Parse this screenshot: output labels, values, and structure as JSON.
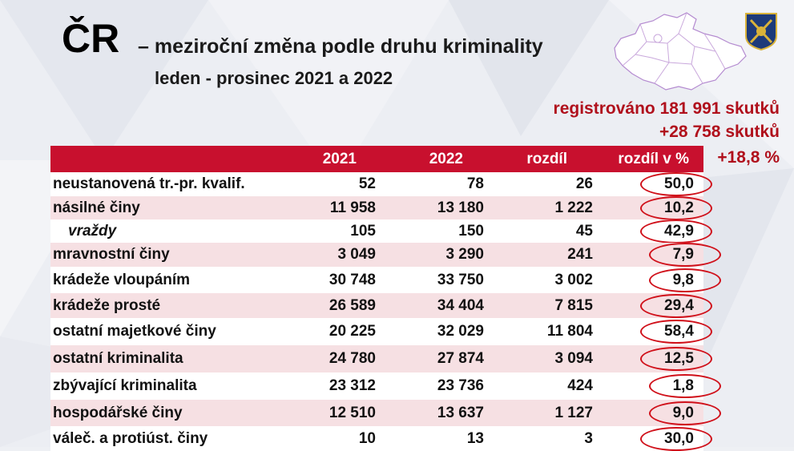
{
  "title": {
    "main": "ČR",
    "rest": "– meziroční změna podle druhu kriminality",
    "period": "leden - prosinec 2021 a 2022"
  },
  "summary": {
    "registered": "registrováno 181 991 skutků",
    "change_abs": "+28 758 skutků",
    "change_pct": "+18,8 %"
  },
  "table": {
    "headers": [
      "",
      "2021",
      "2022",
      "rozdíl",
      "rozdíl v %"
    ],
    "rows": [
      {
        "name": "neustanovená tr.-pr. kvalif.",
        "y2021": "52",
        "y2022": "78",
        "diff": "26",
        "pct": "50,0",
        "italic": false
      },
      {
        "name": "násilné činy",
        "y2021": "11 958",
        "y2022": "13 180",
        "diff": "1 222",
        "pct": "10,2",
        "italic": false
      },
      {
        "name": "vraždy",
        "y2021": "105",
        "y2022": "150",
        "diff": "45",
        "pct": "42,9",
        "italic": true
      },
      {
        "name": "mravnostní činy",
        "y2021": "3 049",
        "y2022": "3 290",
        "diff": "241",
        "pct": "7,9",
        "italic": false
      },
      {
        "name": "krádeže vloupáním",
        "y2021": "30 748",
        "y2022": "33 750",
        "diff": "3 002",
        "pct": "9,8",
        "italic": false
      },
      {
        "name": "krádeže prosté",
        "y2021": "26 589",
        "y2022": "34 404",
        "diff": "7 815",
        "pct": "29,4",
        "italic": false
      },
      {
        "name": "ostatní majetkové činy",
        "y2021": "20 225",
        "y2022": "32 029",
        "diff": "11 804",
        "pct": "58,4",
        "italic": false
      },
      {
        "name": "ostatní kriminalita",
        "y2021": "24 780",
        "y2022": "27 874",
        "diff": "3 094",
        "pct": "12,5",
        "italic": false
      },
      {
        "name": "zbývající kriminalita",
        "y2021": "23 312",
        "y2022": "23 736",
        "diff": "424",
        "pct": "1,8",
        "italic": false
      },
      {
        "name": "hospodářské činy",
        "y2021": "12 510",
        "y2022": "13 637",
        "diff": "1 127",
        "pct": "9,0",
        "italic": false
      },
      {
        "name": "váleč. a protiúst. činy",
        "y2021": "10",
        "y2022": "13",
        "diff": "3",
        "pct": "30,0",
        "italic": false
      }
    ]
  },
  "colors": {
    "header_bg": "#c8102e",
    "accent_text": "#b0101c",
    "ring": "#d0101a",
    "row_alt": "#f6e0e3"
  },
  "icons": {
    "map": "czech-regions-map-icon",
    "logo": "police-emblem-icon"
  }
}
